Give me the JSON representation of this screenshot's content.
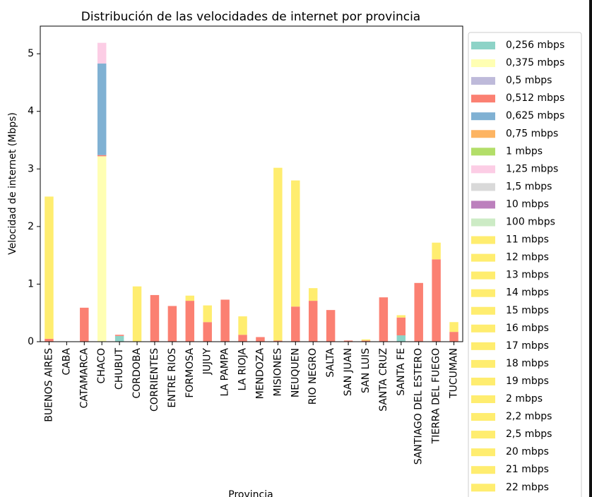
{
  "chart_data": {
    "type": "stacked-bar",
    "title": "Distribución de las velocidades de internet por provincia",
    "y_label": "Velocidad de internet (Mbps)",
    "x_label": "Provincia",
    "categories": [
      "BUENOS AIRES",
      "CABA",
      "CATAMARCA",
      "CHACO",
      "CHUBUT",
      "CORDOBA",
      "CORRIENTES",
      "ENTRE RIOS",
      "FORMOSA",
      "JUJUY",
      "LA PAMPA",
      "LA RIOJA",
      "MENDOZA",
      "MISIONES",
      "NEUQUEN",
      "RIO NEGRO",
      "SALTA",
      "SAN JUAN",
      "SAN LUIS",
      "SANTA CRUZ",
      "SANTA FE",
      "SANTIAGO DEL ESTERO",
      "TIERRA DEL FUEGO",
      "TUCUMAN"
    ],
    "ylim": [
      0,
      5.48
    ],
    "yticks": [
      0,
      1,
      2,
      3,
      4,
      5
    ],
    "legend": "right",
    "series": [
      {
        "name": "0,256 mbps",
        "color": "#8dd3c7",
        "values": [
          0,
          0,
          0,
          0,
          0.1,
          0,
          0,
          0,
          0,
          0,
          0,
          0,
          0,
          0,
          0,
          0,
          0,
          0,
          0,
          0,
          0.11,
          0,
          0,
          0
        ]
      },
      {
        "name": "0,375 mbps",
        "color": "#ffffb3",
        "values": [
          0,
          0,
          0,
          3.22,
          0,
          0,
          0,
          0,
          0,
          0,
          0,
          0,
          0,
          0,
          0,
          0,
          0,
          0,
          0,
          0,
          0,
          0,
          0,
          0
        ]
      },
      {
        "name": "0,5 mbps",
        "color": "#bebada",
        "values": [
          0,
          0,
          0,
          0,
          0,
          0,
          0,
          0,
          0,
          0,
          0,
          0,
          0,
          0,
          0,
          0,
          0,
          0,
          0,
          0,
          0,
          0,
          0,
          0
        ]
      },
      {
        "name": "0,512 mbps",
        "color": "#fb8072",
        "values": [
          0.05,
          0,
          0.59,
          0.02,
          0.02,
          0,
          0.81,
          0.62,
          0.71,
          0.34,
          0.73,
          0.12,
          0.08,
          0.02,
          0.61,
          0.71,
          0.55,
          0.02,
          0.02,
          0.77,
          0.31,
          1.02,
          1.43,
          0.17
        ]
      },
      {
        "name": "0,625 mbps",
        "color": "#80b1d3",
        "values": [
          0,
          0,
          0,
          1.59,
          0,
          0,
          0,
          0,
          0,
          0,
          0,
          0,
          0,
          0,
          0,
          0,
          0,
          0,
          0,
          0,
          0,
          0,
          0,
          0
        ]
      },
      {
        "name": "0,75 mbps",
        "color": "#fdb462",
        "values": [
          0,
          0,
          0,
          0,
          0,
          0,
          0,
          0,
          0,
          0,
          0,
          0,
          0,
          0,
          0,
          0,
          0,
          0,
          0,
          0,
          0,
          0,
          0,
          0
        ]
      },
      {
        "name": "1 mbps",
        "color": "#b3de69",
        "values": [
          0,
          0,
          0,
          0,
          0,
          0,
          0,
          0,
          0,
          0,
          0,
          0,
          0,
          0,
          0,
          0,
          0,
          0,
          0,
          0,
          0,
          0,
          0,
          0
        ]
      },
      {
        "name": "1,25 mbps",
        "color": "#fccde5",
        "values": [
          0,
          0,
          0,
          0.36,
          0,
          0,
          0,
          0,
          0,
          0,
          0,
          0,
          0,
          0,
          0,
          0,
          0,
          0,
          0,
          0,
          0,
          0,
          0,
          0
        ]
      },
      {
        "name": "1,5 mbps",
        "color": "#d9d9d9",
        "values": [
          0,
          0,
          0,
          0,
          0,
          0,
          0,
          0,
          0,
          0,
          0,
          0,
          0,
          0,
          0,
          0,
          0,
          0,
          0,
          0,
          0,
          0,
          0,
          0
        ]
      },
      {
        "name": "10 mbps",
        "color": "#bc80bd",
        "values": [
          0,
          0,
          0,
          0,
          0,
          0,
          0,
          0,
          0,
          0,
          0,
          0,
          0,
          0,
          0,
          0,
          0,
          0,
          0,
          0,
          0,
          0,
          0,
          0
        ]
      },
      {
        "name": "100 mbps",
        "color": "#ccebc5",
        "values": [
          0,
          0,
          0,
          0,
          0,
          0,
          0,
          0,
          0,
          0,
          0,
          0,
          0,
          0,
          0,
          0,
          0,
          0,
          0,
          0,
          0,
          0,
          0,
          0
        ]
      },
      {
        "name": "11 mbps",
        "color": "#ffed6f",
        "values": [
          2.47,
          0,
          0,
          0,
          0,
          0.96,
          0,
          0,
          0.09,
          0.29,
          0,
          0.32,
          0,
          3.0,
          2.19,
          0.22,
          0,
          0,
          0.02,
          0,
          0.04,
          0,
          0.29,
          0.17
        ]
      },
      {
        "name": "12 mbps",
        "color": "#ffed6f",
        "values": [
          0,
          0,
          0,
          0,
          0,
          0,
          0,
          0,
          0,
          0,
          0,
          0,
          0,
          0,
          0,
          0,
          0,
          0,
          0,
          0,
          0,
          0,
          0,
          0
        ]
      },
      {
        "name": "13 mbps",
        "color": "#ffed6f",
        "values": [
          0,
          0,
          0,
          0,
          0,
          0,
          0,
          0,
          0,
          0,
          0,
          0,
          0,
          0,
          0,
          0,
          0,
          0,
          0,
          0,
          0,
          0,
          0,
          0
        ]
      },
      {
        "name": "14 mbps",
        "color": "#ffed6f",
        "values": [
          0,
          0,
          0,
          0,
          0,
          0,
          0,
          0,
          0,
          0,
          0,
          0,
          0,
          0,
          0,
          0,
          0,
          0,
          0,
          0,
          0,
          0,
          0,
          0
        ]
      },
      {
        "name": "15 mbps",
        "color": "#ffed6f",
        "values": [
          0,
          0,
          0,
          0,
          0,
          0,
          0,
          0,
          0,
          0,
          0,
          0,
          0,
          0,
          0,
          0,
          0,
          0,
          0,
          0,
          0,
          0,
          0,
          0
        ]
      },
      {
        "name": "16 mbps",
        "color": "#ffed6f",
        "values": [
          0,
          0,
          0,
          0,
          0,
          0,
          0,
          0,
          0,
          0,
          0,
          0,
          0,
          0,
          0,
          0,
          0,
          0,
          0,
          0,
          0,
          0,
          0,
          0
        ]
      },
      {
        "name": "17 mbps",
        "color": "#ffed6f",
        "values": [
          0,
          0,
          0,
          0,
          0,
          0,
          0,
          0,
          0,
          0,
          0,
          0,
          0,
          0,
          0,
          0,
          0,
          0,
          0,
          0,
          0,
          0,
          0,
          0
        ]
      },
      {
        "name": "18 mbps",
        "color": "#ffed6f",
        "values": [
          0,
          0,
          0,
          0,
          0,
          0,
          0,
          0,
          0,
          0,
          0,
          0,
          0,
          0,
          0,
          0,
          0,
          0,
          0,
          0,
          0,
          0,
          0,
          0
        ]
      },
      {
        "name": "19 mbps",
        "color": "#ffed6f",
        "values": [
          0,
          0,
          0,
          0,
          0,
          0,
          0,
          0,
          0,
          0,
          0,
          0,
          0,
          0,
          0,
          0,
          0,
          0,
          0,
          0,
          0,
          0,
          0,
          0
        ]
      },
      {
        "name": "2 mbps",
        "color": "#ffed6f",
        "values": [
          0,
          0,
          0,
          0,
          0,
          0,
          0,
          0,
          0,
          0,
          0,
          0,
          0,
          0,
          0,
          0,
          0,
          0,
          0,
          0,
          0,
          0,
          0,
          0
        ]
      },
      {
        "name": "2,2 mbps",
        "color": "#ffed6f",
        "values": [
          0,
          0,
          0,
          0,
          0,
          0,
          0,
          0,
          0,
          0,
          0,
          0,
          0,
          0,
          0,
          0,
          0,
          0,
          0,
          0,
          0,
          0,
          0,
          0
        ]
      },
      {
        "name": "2,5 mbps",
        "color": "#ffed6f",
        "values": [
          0,
          0,
          0,
          0,
          0,
          0,
          0,
          0,
          0,
          0,
          0,
          0,
          0,
          0,
          0,
          0,
          0,
          0,
          0,
          0,
          0,
          0,
          0,
          0
        ]
      },
      {
        "name": "20 mbps",
        "color": "#ffed6f",
        "values": [
          0,
          0,
          0,
          0,
          0,
          0,
          0,
          0,
          0,
          0,
          0,
          0,
          0,
          0,
          0,
          0,
          0,
          0,
          0,
          0,
          0,
          0,
          0,
          0
        ]
      },
      {
        "name": "21 mbps",
        "color": "#ffed6f",
        "values": [
          0,
          0,
          0,
          0,
          0,
          0,
          0,
          0,
          0,
          0,
          0,
          0,
          0,
          0,
          0,
          0,
          0,
          0,
          0,
          0,
          0,
          0,
          0,
          0
        ]
      },
      {
        "name": "22 mbps",
        "color": "#ffed6f",
        "values": [
          0,
          0,
          0,
          0,
          0,
          0,
          0,
          0,
          0,
          0,
          0,
          0,
          0,
          0,
          0,
          0,
          0,
          0,
          0,
          0,
          0,
          0,
          0,
          0
        ]
      }
    ]
  }
}
